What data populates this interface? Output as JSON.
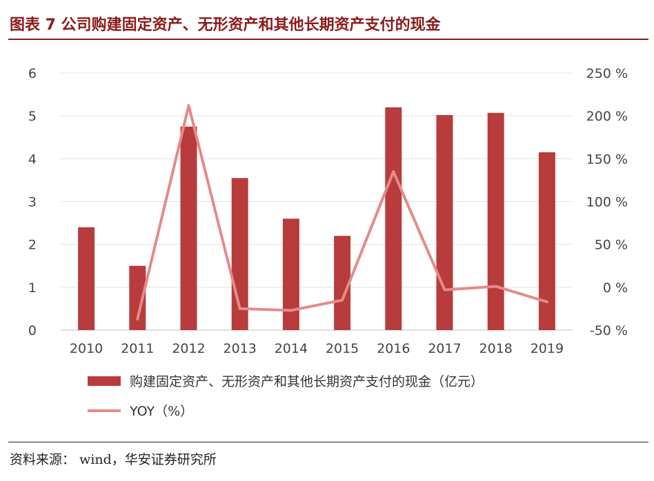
{
  "title": "图表 7 公司购建固定资产、无形资产和其他长期资产支付的现金",
  "source": "资料来源： wind，华安证券研究所",
  "chart_data": {
    "type": "bar",
    "categories": [
      "2010",
      "2011",
      "2012",
      "2013",
      "2014",
      "2015",
      "2016",
      "2017",
      "2018",
      "2019"
    ],
    "series": [
      {
        "name": "购建固定资产、无形资产和其他长期资产支付的现金（亿元）",
        "type": "bar",
        "axis": "left",
        "color": "#b83c3c",
        "values": [
          2.4,
          1.5,
          4.75,
          3.55,
          2.6,
          2.2,
          5.2,
          5.02,
          5.07,
          4.15
        ]
      },
      {
        "name": "YOY（%）",
        "type": "line",
        "axis": "right",
        "color": "#e58a8a",
        "values": [
          null,
          -37,
          212,
          -25,
          -27,
          -15,
          135,
          -3,
          1,
          -17
        ]
      }
    ],
    "left_axis": {
      "ylim": [
        0,
        6
      ],
      "ticks": [
        "0",
        "1",
        "2",
        "3",
        "4",
        "5",
        "6"
      ]
    },
    "right_axis": {
      "ylim": [
        -50,
        250
      ],
      "ticks": [
        "-50 %",
        "0 %",
        "50 %",
        "100 %",
        "150 %",
        "200 %",
        "250 %"
      ]
    },
    "grid": true,
    "legend_position": "bottom-left"
  }
}
